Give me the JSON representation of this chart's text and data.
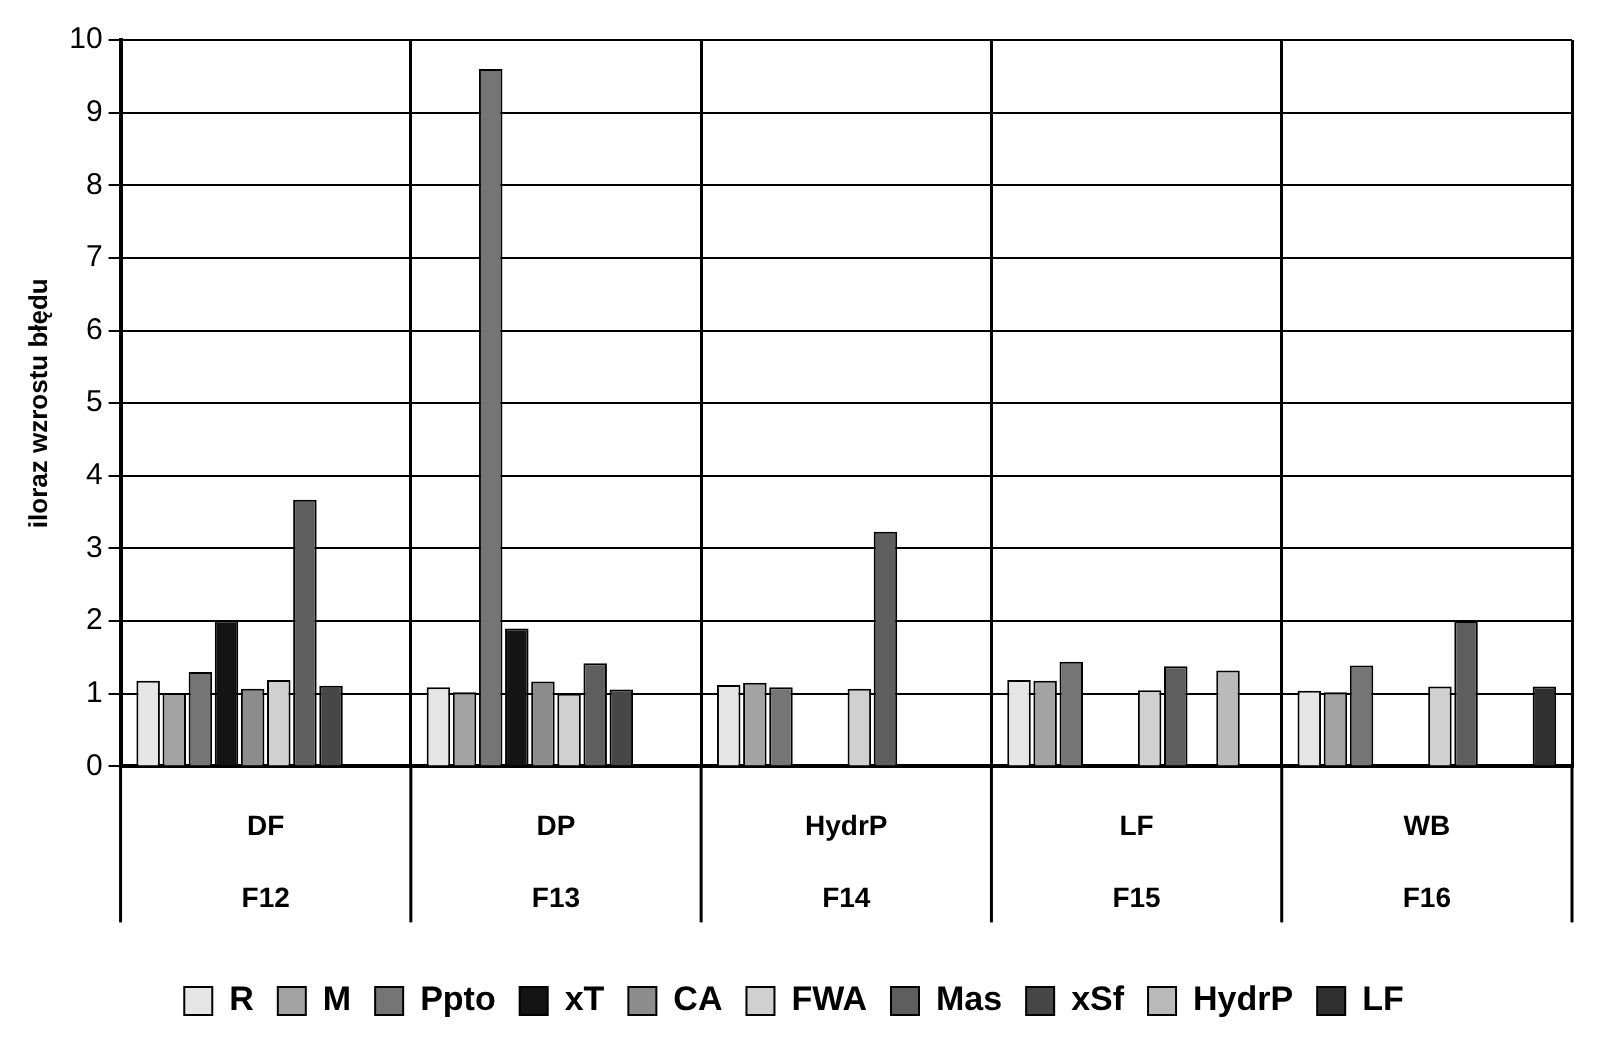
{
  "chart_data": {
    "type": "bar",
    "ylabel": "iloraz wzrostu błędu",
    "categories": [
      "DF\nF12",
      "DP\nF13",
      "HydrP\nF14",
      "LF\nF15",
      "WB\nF16"
    ],
    "series": [
      {
        "name": "R",
        "color": "#e6e6e6",
        "values": [
          1.18,
          1.09,
          1.12,
          1.19,
          1.04
        ]
      },
      {
        "name": "M",
        "color": "#a3a3a3",
        "values": [
          1.01,
          1.02,
          1.15,
          1.18,
          1.02
        ]
      },
      {
        "name": "Ppto",
        "color": "#757575",
        "values": [
          1.3,
          9.6,
          1.09,
          1.44,
          1.39
        ]
      },
      {
        "name": "xT",
        "color": "#141414",
        "values": [
          2.01,
          1.9,
          null,
          null,
          null
        ]
      },
      {
        "name": "CA",
        "color": "#8c8c8c",
        "values": [
          1.07,
          1.17,
          null,
          null,
          null
        ]
      },
      {
        "name": "FWA",
        "color": "#d0d0d0",
        "values": [
          1.19,
          1.0,
          1.07,
          1.05,
          1.1
        ]
      },
      {
        "name": "Mas",
        "color": "#5e5e5e",
        "values": [
          3.67,
          1.42,
          3.23,
          1.38,
          2.0
        ]
      },
      {
        "name": "xSf",
        "color": "#474747",
        "values": [
          1.11,
          1.06,
          null,
          null,
          null
        ]
      },
      {
        "name": "HydrP",
        "color": "#bababa",
        "values": [
          null,
          null,
          null,
          1.32,
          null
        ]
      },
      {
        "name": "LF",
        "color": "#303030",
        "values": [
          null,
          null,
          null,
          null,
          1.1
        ]
      }
    ],
    "ylim": [
      0,
      10
    ],
    "yticks": [
      0,
      1,
      2,
      3,
      4,
      5,
      6,
      7,
      8,
      9,
      10
    ],
    "grid": true,
    "legend": "bottom"
  }
}
